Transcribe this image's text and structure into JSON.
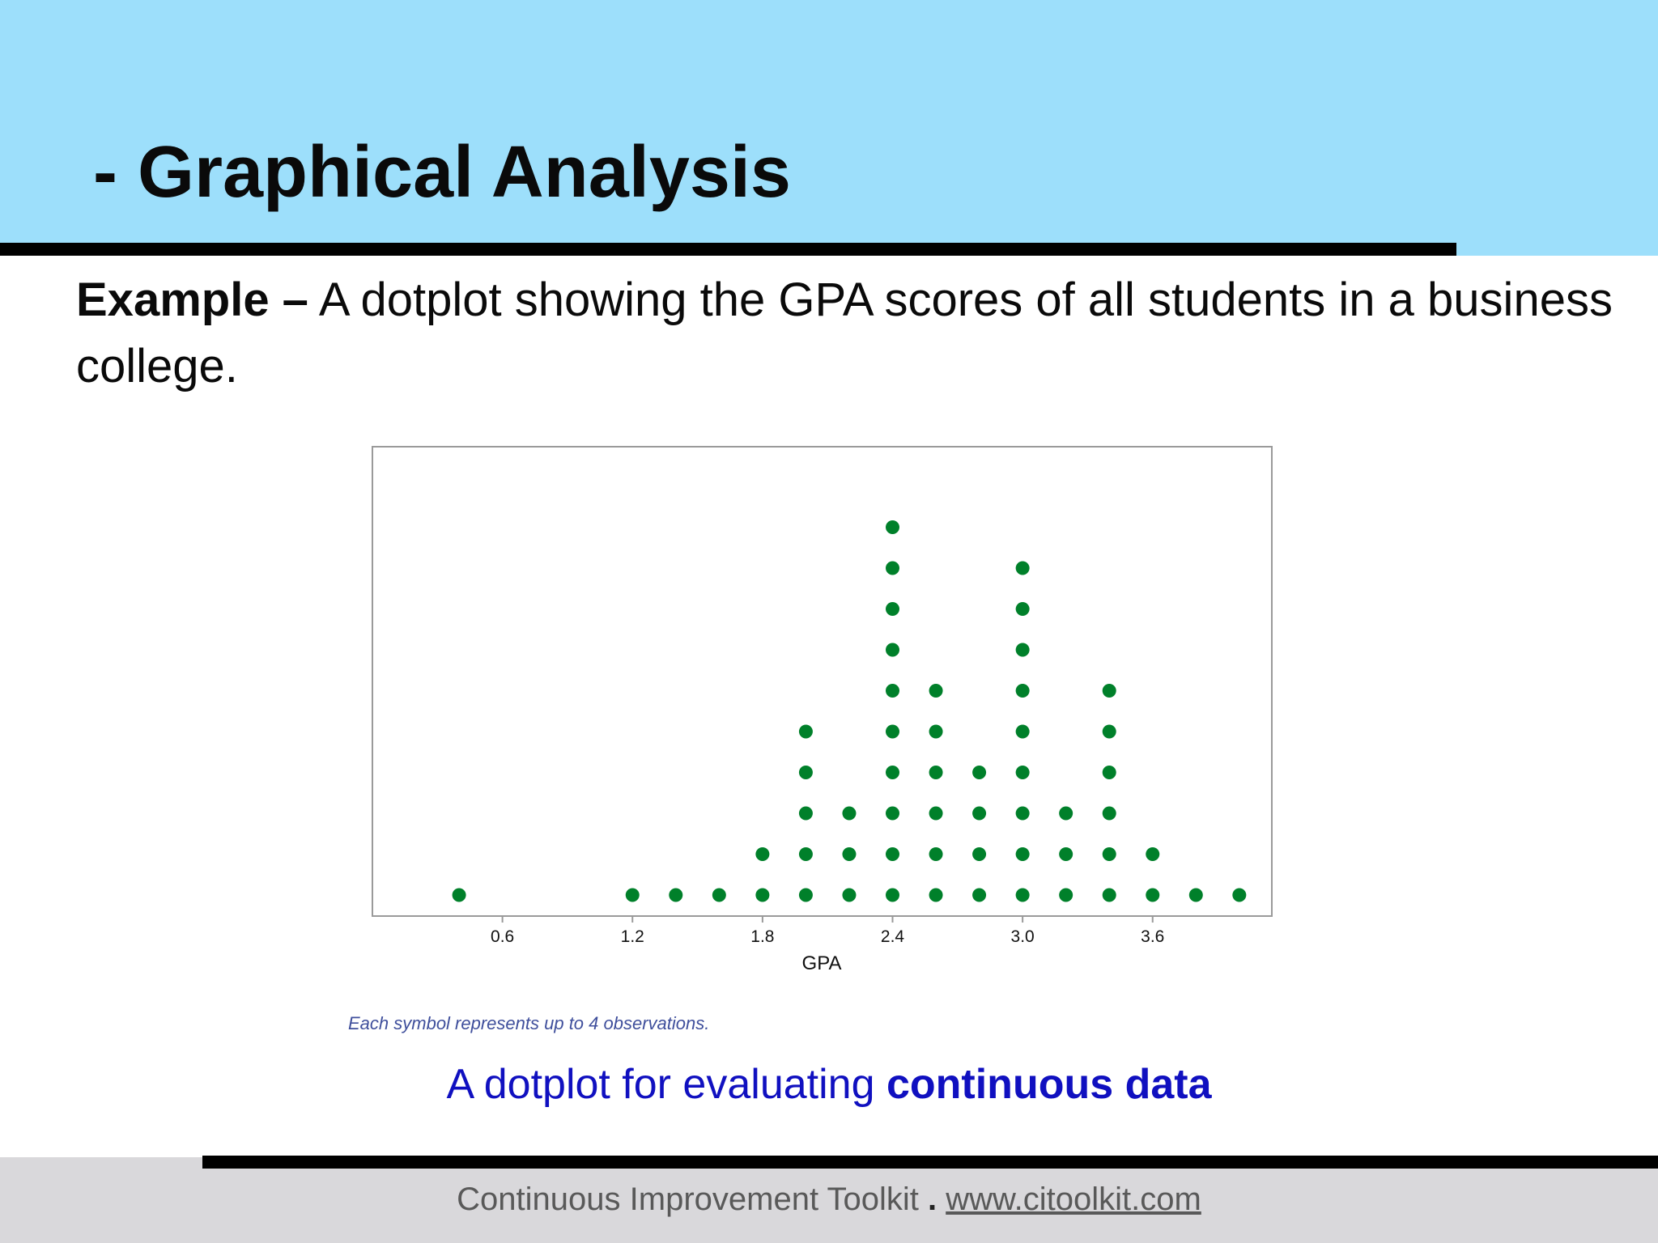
{
  "slide": {
    "title": "- Graphical Analysis",
    "intro_lead": "Example –",
    "intro_text": " A dotplot showing the GPA scores of all students in a business college.",
    "footnote": "Each symbol represents up to 4 observations.",
    "caption_plain": "A dotplot for evaluating ",
    "caption_bold": "continuous data",
    "footer_name": "Continuous Improvement Toolkit",
    "footer_separator": " . ",
    "footer_url": "www.citoolkit.com"
  },
  "colors": {
    "header_band": "#9ddffb",
    "dot": "#00802a",
    "caption": "#1010c0",
    "footnote": "#3f4f9c",
    "footer_band": "#d9d8db"
  },
  "chart_data": {
    "type": "scatter",
    "subtype": "dotplot",
    "xlabel": "GPA",
    "ylabel": "",
    "x_ticks": [
      "0.6",
      "1.2",
      "1.8",
      "2.4",
      "3.0",
      "3.6"
    ],
    "xlim": [
      0.0,
      4.15
    ],
    "grid": false,
    "symbol_count_unit": 4,
    "points": [
      {
        "x": 0.4,
        "count": 1
      },
      {
        "x": 1.2,
        "count": 1
      },
      {
        "x": 1.4,
        "count": 1
      },
      {
        "x": 1.6,
        "count": 1
      },
      {
        "x": 1.8,
        "count": 2
      },
      {
        "x": 2.0,
        "count": 5
      },
      {
        "x": 2.2,
        "count": 3
      },
      {
        "x": 2.4,
        "count": 10
      },
      {
        "x": 2.6,
        "count": 6
      },
      {
        "x": 2.8,
        "count": 4
      },
      {
        "x": 3.0,
        "count": 9
      },
      {
        "x": 3.2,
        "count": 3
      },
      {
        "x": 3.4,
        "count": 6
      },
      {
        "x": 3.6,
        "count": 2
      },
      {
        "x": 3.8,
        "count": 1
      },
      {
        "x": 4.0,
        "count": 1
      }
    ]
  }
}
